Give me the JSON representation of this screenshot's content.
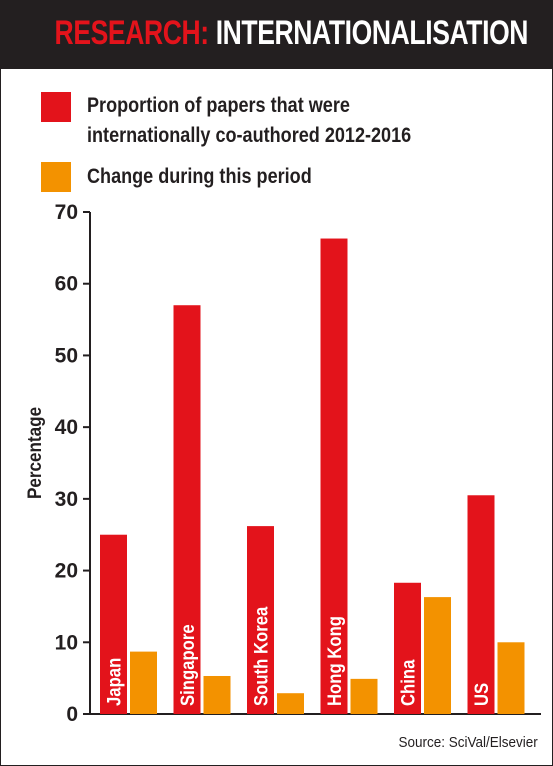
{
  "header": {
    "title_part1": "RESEARCH:",
    "title_part2": "INTERNATIONALISATION"
  },
  "legend": [
    {
      "label": "Proportion of papers that were",
      "label2": "internationally co-authored 2012-2016",
      "color": "#e3131b"
    },
    {
      "label": "Change during this period",
      "color": "#f39200"
    }
  ],
  "source": "Source: SciVal/Elsevier",
  "chart_data": {
    "type": "bar",
    "categories": [
      "Japan",
      "Singapore",
      "South Korea",
      "Hong Kong",
      "China",
      "US"
    ],
    "series": [
      {
        "name": "Proportion of papers that were internationally co-authored 2012-2016",
        "color": "#e3131b",
        "values": [
          25,
          57,
          26.2,
          66.3,
          18.3,
          30.5
        ]
      },
      {
        "name": "Change during this period",
        "color": "#f39200",
        "values": [
          8.7,
          5.3,
          2.9,
          4.9,
          16.3,
          10
        ]
      }
    ],
    "ylabel": "Percentage",
    "ylim": [
      0,
      70
    ],
    "yticks": [
      0,
      10,
      20,
      30,
      40,
      50,
      60,
      70
    ],
    "grid": false,
    "legend_position": "top"
  }
}
